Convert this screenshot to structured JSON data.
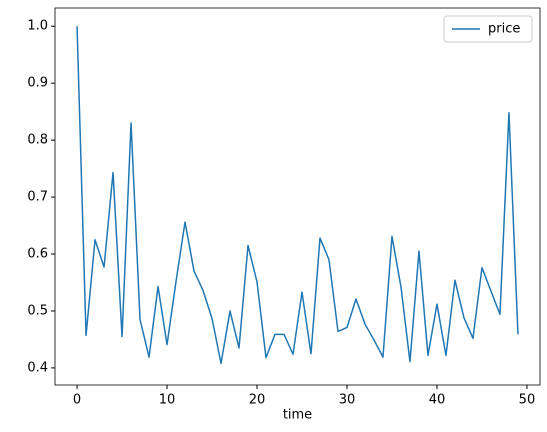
{
  "chart_data": {
    "type": "line",
    "x": [
      0,
      1,
      2,
      3,
      4,
      5,
      6,
      7,
      8,
      9,
      10,
      11,
      12,
      13,
      14,
      15,
      16,
      17,
      18,
      19,
      20,
      21,
      22,
      23,
      24,
      25,
      26,
      27,
      28,
      29,
      30,
      31,
      32,
      33,
      34,
      35,
      36,
      37,
      38,
      39,
      40,
      41,
      42,
      43,
      44,
      45,
      46,
      47,
      48,
      49
    ],
    "series": [
      {
        "name": "price",
        "color": "#1f77b4",
        "values": [
          1.0,
          0.457,
          0.625,
          0.577,
          0.743,
          0.455,
          0.83,
          0.485,
          0.419,
          0.543,
          0.441,
          0.552,
          0.656,
          0.57,
          0.536,
          0.487,
          0.408,
          0.5,
          0.435,
          0.615,
          0.551,
          0.418,
          0.459,
          0.459,
          0.424,
          0.533,
          0.425,
          0.628,
          0.59,
          0.464,
          0.471,
          0.521,
          0.477,
          0.449,
          0.419,
          0.631,
          0.542,
          0.411,
          0.605,
          0.422,
          0.512,
          0.422,
          0.554,
          0.488,
          0.452,
          0.576,
          0.535,
          0.494,
          0.848,
          0.459
        ]
      }
    ],
    "x_label": "time",
    "xlim": [
      -2.45,
      51.45
    ],
    "xticks": [
      0,
      10,
      20,
      30,
      40,
      50
    ],
    "ylim": [
      0.37,
      1.032
    ],
    "yticks": [
      0.4,
      0.5,
      0.6,
      0.7,
      0.8,
      0.9,
      {
        "value": 1,
        "label": "1.0"
      }
    ],
    "legend": "upper right",
    "grid": false
  }
}
